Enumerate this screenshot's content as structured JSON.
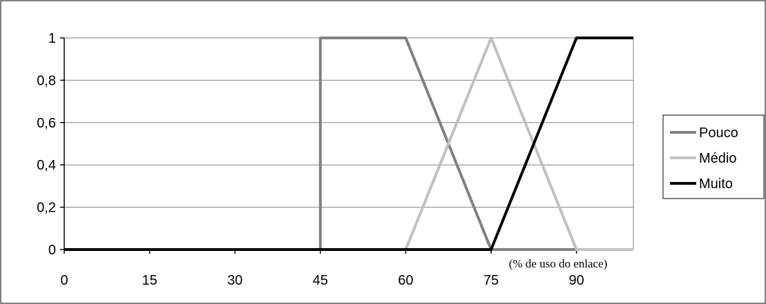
{
  "chart_data": {
    "type": "line",
    "xlabel": "(% de uso do enlace)",
    "ylabel": "",
    "xlim": [
      0,
      100
    ],
    "ylim": [
      0,
      1
    ],
    "x_ticks": [
      0,
      15,
      30,
      45,
      60,
      75,
      90
    ],
    "x_tick_labels": [
      "0",
      "15",
      "30",
      "45",
      "60",
      "75",
      "90"
    ],
    "y_ticks": [
      0,
      0.2,
      0.4,
      0.6,
      0.8,
      1
    ],
    "y_tick_labels": [
      "0",
      "0,2",
      "0,4",
      "0,6",
      "0,8",
      "1"
    ],
    "grid": "horizontal",
    "legend_position": "right",
    "series": [
      {
        "name": "Pouco",
        "color": "#808080",
        "points": [
          [
            0,
            0
          ],
          [
            45,
            0
          ],
          [
            45,
            1
          ],
          [
            60,
            1
          ],
          [
            75,
            0
          ],
          [
            100,
            0
          ]
        ]
      },
      {
        "name": "Médio",
        "color": "#c0c0c0",
        "points": [
          [
            0,
            0
          ],
          [
            60,
            0
          ],
          [
            75,
            1
          ],
          [
            90,
            0
          ],
          [
            100,
            0
          ]
        ]
      },
      {
        "name": "Muito",
        "color": "#000000",
        "points": [
          [
            0,
            0
          ],
          [
            75,
            0
          ],
          [
            90,
            1
          ],
          [
            100,
            1
          ]
        ]
      }
    ]
  }
}
